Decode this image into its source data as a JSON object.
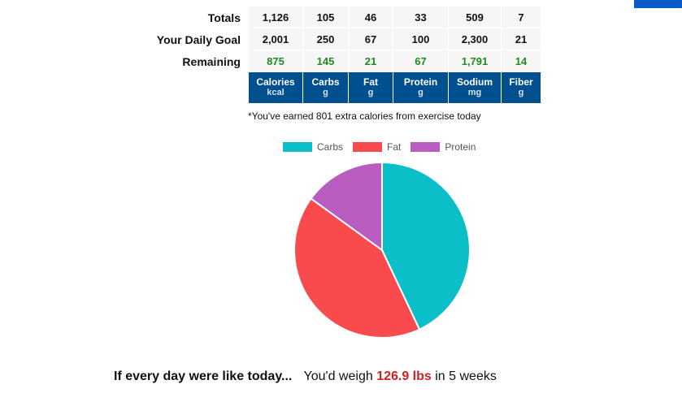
{
  "summary": {
    "rows": [
      {
        "label": "Totals",
        "values": [
          "1,126",
          "105",
          "46",
          "33",
          "509",
          "7"
        ]
      },
      {
        "label": "Your Daily Goal",
        "values": [
          "2,001",
          "250",
          "67",
          "100",
          "2,300",
          "21"
        ]
      },
      {
        "label": "Remaining",
        "values": [
          "875",
          "145",
          "21",
          "67",
          "1,791",
          "14"
        ]
      }
    ],
    "columns": [
      {
        "name": "Calories",
        "unit": "kcal"
      },
      {
        "name": "Carbs",
        "unit": "g"
      },
      {
        "name": "Fat",
        "unit": "g"
      },
      {
        "name": "Protein",
        "unit": "g"
      },
      {
        "name": "Sodium",
        "unit": "mg"
      },
      {
        "name": "Fiber",
        "unit": "g"
      }
    ]
  },
  "exercise_note": "*You've earned 801 extra calories from exercise today",
  "chart_data": {
    "type": "pie",
    "labels": [
      "Carbs",
      "Fat",
      "Protein"
    ],
    "values": [
      43,
      42,
      15
    ],
    "colors": [
      "#0bbfc9",
      "#f94a4e",
      "#b85cc0"
    ],
    "legend": "top"
  },
  "projection": {
    "lead": "If every day were like today...",
    "prefix": "You'd weigh",
    "weight": "126.9 lbs",
    "suffix": "in 5 weeks"
  },
  "colors": {
    "header_bg": "#004f8f",
    "remaining_text": "#1f8c1f",
    "weight_text": "#d21f1f"
  }
}
